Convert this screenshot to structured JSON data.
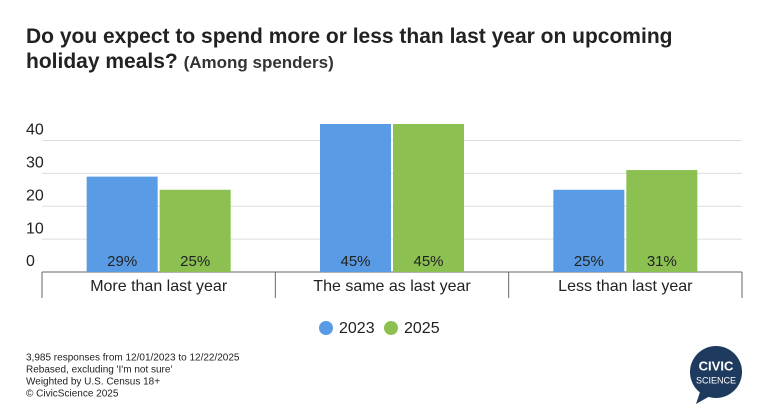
{
  "chart_data": {
    "type": "bar",
    "title": "Do you expect to spend more or less than last year on upcoming holiday meals?",
    "subtitle": "(Among spenders)",
    "categories": [
      "More than last year",
      "The same as last year",
      "Less than last year"
    ],
    "series": [
      {
        "name": "2023",
        "color": "#5a9be6",
        "values": [
          29,
          45,
          25
        ],
        "value_labels": [
          "29%",
          "45%",
          "25%"
        ]
      },
      {
        "name": "2025",
        "color": "#8cc152",
        "values": [
          25,
          45,
          31
        ],
        "value_labels": [
          "25%",
          "45%",
          "31%"
        ]
      }
    ],
    "ylim": [
      0,
      45
    ],
    "yticks": [
      0,
      10,
      20,
      30,
      40
    ],
    "grid": true,
    "legend": "bottom"
  },
  "footer": [
    "3,985 responses from 12/01/2023 to 12/22/2025",
    "Rebased, excluding 'I'm not sure'",
    "Weighted by U.S. Census 18+",
    "© CivicScience 2025"
  ],
  "logo": {
    "line1": "CIVIC",
    "line2": "SCIENCE"
  }
}
